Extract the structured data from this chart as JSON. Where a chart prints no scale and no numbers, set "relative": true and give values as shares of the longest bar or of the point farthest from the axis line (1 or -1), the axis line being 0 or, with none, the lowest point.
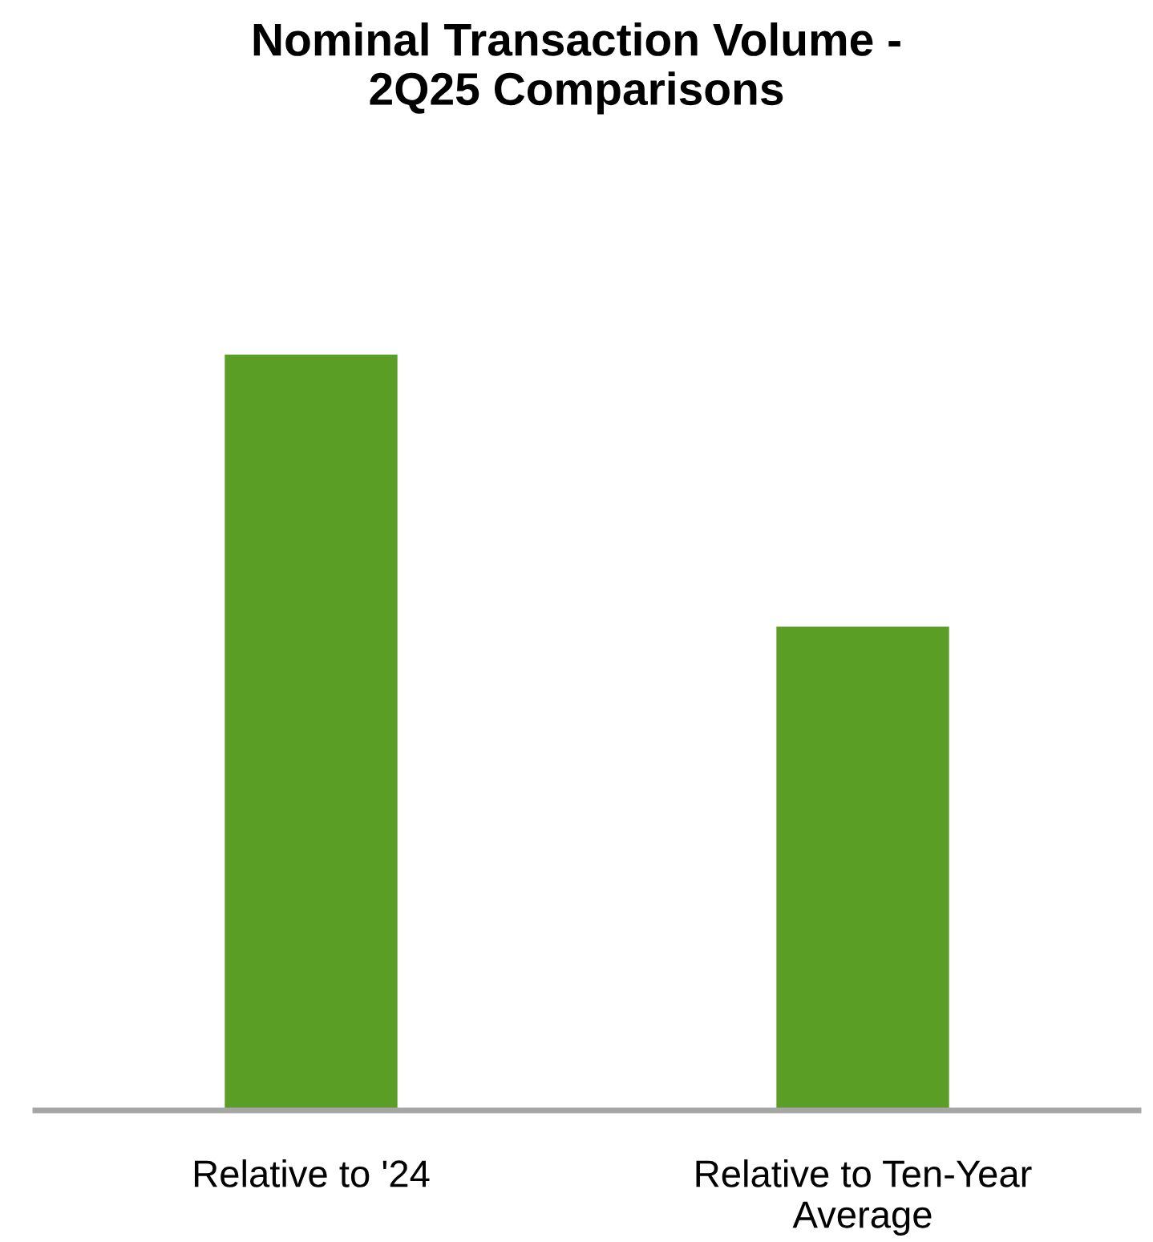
{
  "chart_data": {
    "type": "bar",
    "title": "Nominal Transaction Volume -\n2Q25 Comparisons",
    "categories": [
      "Relative to '24",
      "Relative to Ten-Year\nAverage"
    ],
    "values": [
      1,
      0.64
    ],
    "color": "#5a9e25",
    "relative": true,
    "grid": false,
    "legend": false
  }
}
